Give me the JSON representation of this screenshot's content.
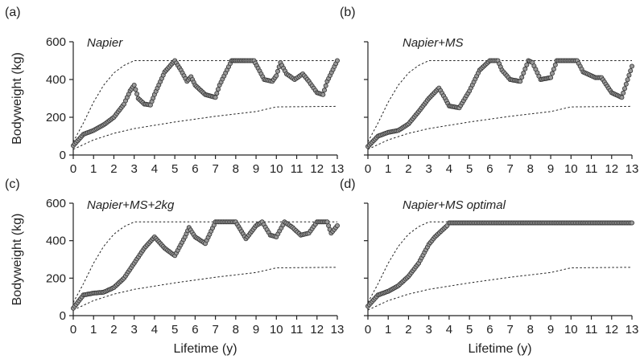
{
  "chart_data": [
    {
      "type": "line",
      "panel": "(a)",
      "title": "Napier",
      "xlabel": "Lifetime (y)",
      "ylabel": "Bodyweight (kg)",
      "xlim": [
        0,
        13
      ],
      "ylim": [
        0,
        600
      ],
      "xticks": [
        0,
        1,
        2,
        3,
        4,
        5,
        6,
        7,
        8,
        9,
        10,
        11,
        12,
        13
      ],
      "yticks": [
        0,
        200,
        400,
        600
      ],
      "show_xlabel": false,
      "show_ylabel": true,
      "show_yticklabels": true,
      "upper_bound": [
        [
          0,
          70
        ],
        [
          0.5,
          170
        ],
        [
          1,
          280
        ],
        [
          1.5,
          370
        ],
        [
          2,
          435
        ],
        [
          2.5,
          475
        ],
        [
          3,
          500
        ],
        [
          13,
          500
        ]
      ],
      "lower_bound": [
        [
          0,
          30
        ],
        [
          1,
          80
        ],
        [
          2,
          115
        ],
        [
          3,
          140
        ],
        [
          5,
          175
        ],
        [
          7,
          205
        ],
        [
          9,
          230
        ],
        [
          10,
          255
        ],
        [
          13,
          258
        ]
      ],
      "series": [
        {
          "x": [
            0,
            0.5,
            1,
            1.5,
            2,
            2.5,
            2.8,
            3,
            3.2,
            3.5,
            3.8,
            4,
            4.5,
            5,
            5.3,
            5.6,
            5.8,
            6,
            6.5,
            7,
            7.2,
            7.8,
            8,
            8.5,
            8.9,
            9.1,
            9.4,
            9.8,
            10,
            10.2,
            10.5,
            10.9,
            11.3,
            11.6,
            12,
            12.3,
            12.5,
            13
          ],
          "y": [
            50,
            110,
            130,
            160,
            200,
            270,
            340,
            370,
            300,
            270,
            265,
            320,
            440,
            500,
            450,
            390,
            415,
            370,
            320,
            305,
            370,
            500,
            500,
            500,
            500,
            460,
            400,
            390,
            420,
            490,
            430,
            400,
            430,
            390,
            330,
            320,
            390,
            500
          ]
        }
      ]
    },
    {
      "type": "line",
      "panel": "(b)",
      "title": "Napier+MS",
      "xlabel": "Lifetime (y)",
      "ylabel": "Bodyweight (kg)",
      "xlim": [
        0,
        13
      ],
      "ylim": [
        0,
        600
      ],
      "xticks": [
        0,
        1,
        2,
        3,
        4,
        5,
        6,
        7,
        8,
        9,
        10,
        11,
        12,
        13
      ],
      "yticks": [
        0,
        200,
        400,
        600
      ],
      "show_xlabel": false,
      "show_ylabel": false,
      "show_yticklabels": false,
      "upper_bound": [
        [
          0,
          70
        ],
        [
          0.5,
          170
        ],
        [
          1,
          280
        ],
        [
          1.5,
          370
        ],
        [
          2,
          435
        ],
        [
          2.5,
          475
        ],
        [
          3,
          500
        ],
        [
          13,
          500
        ]
      ],
      "lower_bound": [
        [
          0,
          30
        ],
        [
          1,
          80
        ],
        [
          2,
          115
        ],
        [
          3,
          140
        ],
        [
          5,
          175
        ],
        [
          7,
          205
        ],
        [
          9,
          230
        ],
        [
          10,
          255
        ],
        [
          13,
          258
        ]
      ],
      "series": [
        {
          "x": [
            0,
            0.5,
            1,
            1.5,
            2,
            2.5,
            3,
            3.5,
            3.8,
            4,
            4.5,
            5,
            5.5,
            6,
            6.4,
            6.6,
            7,
            7.5,
            7.9,
            8.1,
            8.5,
            9,
            9.3,
            10,
            10.3,
            10.6,
            11.2,
            11.5,
            12,
            12.5,
            13
          ],
          "y": [
            45,
            100,
            120,
            130,
            165,
            230,
            300,
            355,
            300,
            260,
            250,
            340,
            450,
            500,
            500,
            450,
            400,
            390,
            500,
            490,
            400,
            410,
            500,
            500,
            500,
            440,
            410,
            410,
            330,
            305,
            470
          ]
        }
      ]
    },
    {
      "type": "line",
      "panel": "(c)",
      "title": "Napier+MS+2kg",
      "xlabel": "Lifetime (y)",
      "ylabel": "Bodyweight (kg)",
      "xlim": [
        0,
        13
      ],
      "ylim": [
        0,
        600
      ],
      "xticks": [
        0,
        1,
        2,
        3,
        4,
        5,
        6,
        7,
        8,
        9,
        10,
        11,
        12,
        13
      ],
      "yticks": [
        0,
        200,
        400,
        600
      ],
      "show_xlabel": true,
      "show_ylabel": true,
      "show_yticklabels": true,
      "upper_bound": [
        [
          0,
          70
        ],
        [
          0.5,
          170
        ],
        [
          1,
          280
        ],
        [
          1.5,
          370
        ],
        [
          2,
          435
        ],
        [
          2.5,
          475
        ],
        [
          3,
          500
        ],
        [
          13,
          500
        ]
      ],
      "lower_bound": [
        [
          0,
          30
        ],
        [
          1,
          80
        ],
        [
          2,
          115
        ],
        [
          3,
          140
        ],
        [
          5,
          175
        ],
        [
          7,
          205
        ],
        [
          9,
          230
        ],
        [
          10,
          255
        ],
        [
          13,
          258
        ]
      ],
      "series": [
        {
          "x": [
            0,
            0.5,
            1,
            1.5,
            2,
            2.5,
            3,
            3.5,
            4,
            4.5,
            5,
            5.5,
            5.7,
            6,
            6.5,
            7,
            8,
            8.5,
            9,
            9.3,
            9.7,
            10,
            10.4,
            10.8,
            11.2,
            11.6,
            12,
            12.5,
            12.7,
            13
          ],
          "y": [
            40,
            110,
            120,
            125,
            150,
            200,
            280,
            360,
            420,
            360,
            320,
            420,
            470,
            420,
            385,
            500,
            500,
            410,
            480,
            500,
            430,
            420,
            500,
            470,
            430,
            440,
            500,
            500,
            440,
            480
          ]
        }
      ]
    },
    {
      "type": "line",
      "panel": "(d)",
      "title": "Napier+MS optimal",
      "xlabel": "Lifetime (y)",
      "ylabel": "Bodyweight (kg)",
      "xlim": [
        0,
        13
      ],
      "ylim": [
        0,
        600
      ],
      "xticks": [
        0,
        1,
        2,
        3,
        4,
        5,
        6,
        7,
        8,
        9,
        10,
        11,
        12,
        13
      ],
      "yticks": [
        0,
        200,
        400,
        600
      ],
      "show_xlabel": true,
      "show_ylabel": false,
      "show_yticklabels": false,
      "upper_bound": [
        [
          0,
          70
        ],
        [
          0.5,
          170
        ],
        [
          1,
          280
        ],
        [
          1.5,
          370
        ],
        [
          2,
          435
        ],
        [
          2.5,
          475
        ],
        [
          3,
          500
        ],
        [
          13,
          500
        ]
      ],
      "lower_bound": [
        [
          0,
          30
        ],
        [
          1,
          80
        ],
        [
          2,
          115
        ],
        [
          3,
          140
        ],
        [
          5,
          175
        ],
        [
          7,
          205
        ],
        [
          9,
          230
        ],
        [
          10,
          255
        ],
        [
          13,
          258
        ]
      ],
      "series": [
        {
          "x": [
            0,
            0.5,
            1,
            1.5,
            2,
            2.5,
            3,
            3.3,
            3.6,
            3.9,
            4,
            13
          ],
          "y": [
            50,
            110,
            130,
            160,
            210,
            280,
            380,
            420,
            450,
            480,
            495,
            495
          ]
        }
      ]
    }
  ]
}
